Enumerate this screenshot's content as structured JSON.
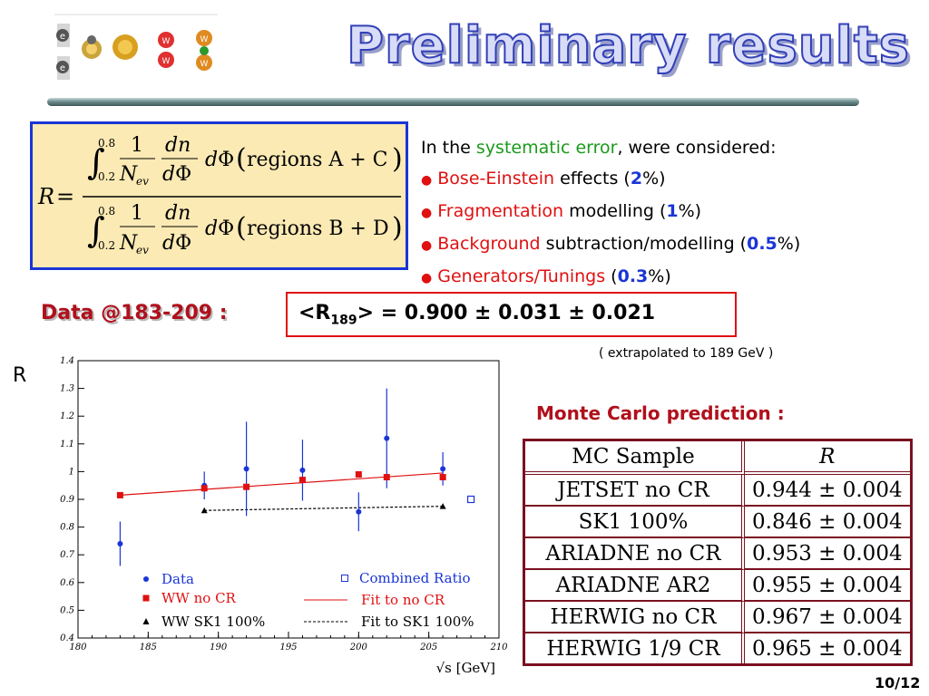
{
  "title": "Preliminary results",
  "formula": {
    "lhs": "R",
    "upper_limit": "0.8",
    "lower_limit": "0.2",
    "numerator_region": "regions A + C",
    "denominator_region": "regions B + D"
  },
  "systematics": {
    "intro_pre": "In the ",
    "intro_highlight": "systematic error",
    "intro_post": ", were considered:",
    "items": [
      {
        "highlight": "Bose-Einstein",
        "text": " effects (",
        "value": "2",
        "post": "%)"
      },
      {
        "highlight": "Fragmentation",
        "text": " modelling (",
        "value": "1",
        "post": "%)"
      },
      {
        "highlight": "Background",
        "text": " subtraction/modelling (",
        "value": "0.5",
        "post": "%)"
      },
      {
        "highlight": "Generators/Tunings",
        "text": " (",
        "value": "0.3",
        "post": "%)"
      }
    ]
  },
  "data_result": {
    "label": "Data @183-209 :",
    "symbol_pre": "<R",
    "symbol_sub": "189",
    "symbol_post": ">",
    "value_text": " = 0.900 ± 0.031 ± 0.021",
    "note": "( extrapolated to 189 GeV )"
  },
  "chart_data": {
    "type": "scatter",
    "ylabel": "R",
    "xlabel": "√s  [GeV]",
    "xlim": [
      180,
      210
    ],
    "ylim": [
      0.4,
      1.4
    ],
    "xticks": [
      180,
      185,
      190,
      195,
      200,
      205,
      210
    ],
    "yticks": [
      0.4,
      0.5,
      0.6,
      0.7,
      0.8,
      0.9,
      1,
      1.1,
      1.2,
      1.3,
      1.4
    ],
    "series": [
      {
        "name": "Data",
        "color": "#1a35d6",
        "marker": "circle",
        "x": [
          183,
          189,
          192,
          196,
          200,
          202,
          206
        ],
        "y": [
          0.74,
          0.95,
          1.01,
          1.005,
          0.855,
          1.12,
          1.01
        ],
        "err": [
          0.08,
          0.05,
          0.17,
          0.11,
          0.07,
          0.18,
          0.06
        ]
      },
      {
        "name": "WW no CR",
        "color": "#e01010",
        "marker": "square",
        "x": [
          183,
          189,
          192,
          196,
          200,
          202,
          206
        ],
        "y": [
          0.915,
          0.94,
          0.945,
          0.97,
          0.99,
          0.98,
          0.98
        ]
      },
      {
        "name": "WW SK1 100%",
        "color": "#000000",
        "marker": "triangle",
        "x": [
          189,
          206
        ],
        "y": [
          0.86,
          0.875
        ]
      },
      {
        "name": "Combined Ratio",
        "color": "#1a35d6",
        "marker": "open-square",
        "x": [
          208
        ],
        "y": [
          0.9
        ]
      }
    ],
    "fits": [
      {
        "name": "Fit to no CR",
        "color": "#e01010",
        "style": "solid",
        "x": [
          183,
          206
        ],
        "y": [
          0.915,
          0.995
        ]
      },
      {
        "name": "Fit to SK1 100%",
        "color": "#000000",
        "style": "dashed",
        "x": [
          189,
          206
        ],
        "y": [
          0.86,
          0.875
        ]
      }
    ]
  },
  "mc": {
    "title": "Monte Carlo prediction :",
    "headers": [
      "MC Sample",
      "R"
    ],
    "rows": [
      [
        "JETSET no CR",
        "0.944 ± 0.004"
      ],
      [
        "SK1 100%",
        "0.846 ± 0.004"
      ],
      [
        "ARIADNE no CR",
        "0.953 ± 0.004"
      ],
      [
        "ARIADNE AR2",
        "0.955 ± 0.004"
      ],
      [
        "HERWIG no CR",
        "0.967 ± 0.004"
      ],
      [
        "HERWIG 1/9 CR",
        "0.965 ± 0.004"
      ]
    ]
  },
  "page_number": "10/12"
}
